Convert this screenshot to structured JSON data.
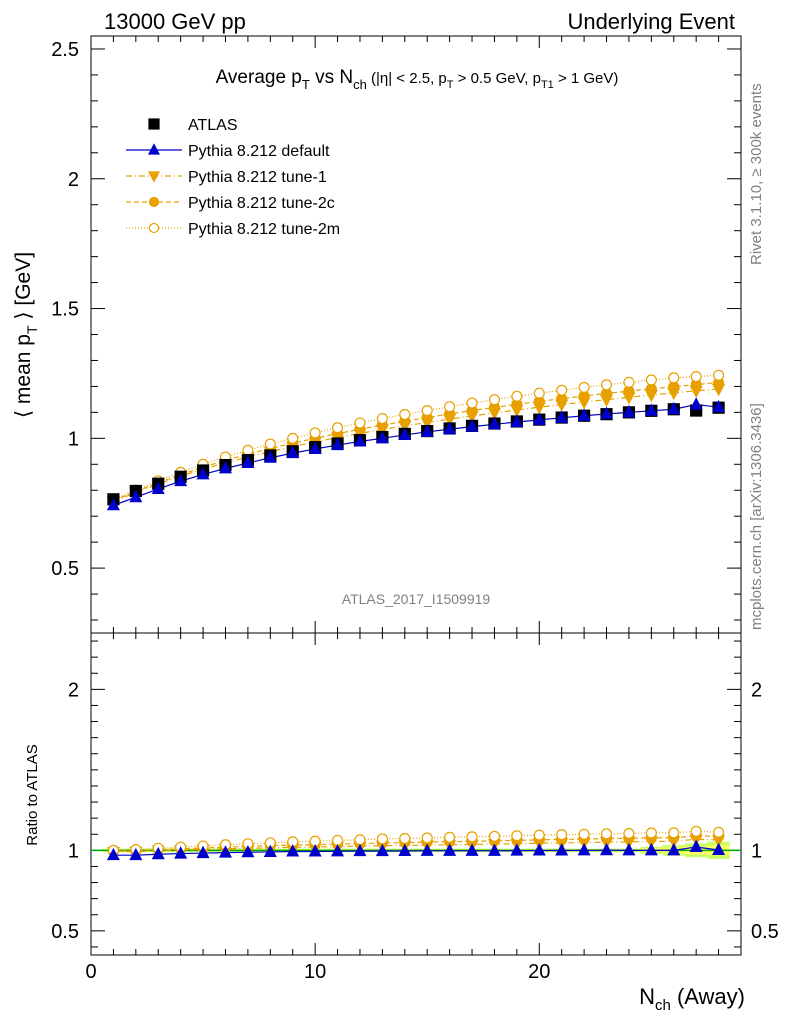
{
  "header": {
    "left": "13000 GeV pp",
    "right": "Underlying Event"
  },
  "plot_title": {
    "main": "Average p",
    "main_sub": "T",
    "vs": " vs N",
    "vs_sub": "ch",
    "cuts_a": " (|η| < 2.5, p",
    "cuts_sub1": "T",
    "cuts_b": " > 0.5 GeV, p",
    "cuts_sub2": "T1",
    "cuts_c": " > 1 GeV)"
  },
  "side_labels": {
    "rivet": "Rivet 3.1.10, ≥ 300k events",
    "mcplots": "mcplots.cern.ch [arXiv:1306.3436]"
  },
  "analysis_id": "ATLAS_2017_I1509919",
  "y_label": {
    "open": "⟨ mean p",
    "sub": "T",
    "close": " ⟩ [GeV]"
  },
  "ratio_label": "Ratio to ATLAS",
  "x_label": {
    "main": "N",
    "sub": "ch",
    "suffix": " (Away)"
  },
  "colors": {
    "atlas": "#000000",
    "default": "#0000cc",
    "tunes": "#e8a000",
    "band_inner": "#ffff66",
    "band_outer": "#ccff66",
    "ref_line": "#00aa00"
  },
  "chart_data": [
    {
      "type": "scatter",
      "panel": "main",
      "x": [
        1,
        2,
        3,
        4,
        5,
        6,
        7,
        8,
        9,
        10,
        11,
        12,
        13,
        14,
        15,
        16,
        17,
        18,
        19,
        20,
        21,
        22,
        23,
        24,
        25,
        26,
        27,
        28
      ],
      "xlim": [
        0,
        29
      ],
      "ylim": [
        0.25,
        2.55
      ],
      "y_ticks": [
        "0.5",
        "1",
        "1.5",
        "2",
        "2.5"
      ],
      "x_ticks": [
        "0",
        "10",
        "20"
      ],
      "legend_position": "top-left",
      "series": [
        {
          "name": "ATLAS",
          "marker": "filled-square",
          "values": [
            0.765,
            0.797,
            0.825,
            0.852,
            0.876,
            0.897,
            0.916,
            0.934,
            0.95,
            0.966,
            0.98,
            0.993,
            1.005,
            1.017,
            1.028,
            1.038,
            1.048,
            1.057,
            1.065,
            1.072,
            1.08,
            1.087,
            1.093,
            1.1,
            1.106,
            1.112,
            1.107,
            1.118
          ]
        },
        {
          "name": "Pythia 8.212 default",
          "marker": "filled-triangle-up",
          "line": "solid",
          "values": [
            0.742,
            0.773,
            0.805,
            0.835,
            0.861,
            0.884,
            0.905,
            0.925,
            0.943,
            0.959,
            0.974,
            0.988,
            1.0,
            1.013,
            1.025,
            1.035,
            1.045,
            1.054,
            1.063,
            1.071,
            1.079,
            1.087,
            1.094,
            1.1,
            1.106,
            1.112,
            1.13,
            1.12
          ]
        },
        {
          "name": "Pythia 8.212 tune-1",
          "marker": "filled-triangle-down",
          "line": "dash-dot",
          "values": [
            0.757,
            0.791,
            0.824,
            0.854,
            0.881,
            0.906,
            0.928,
            0.949,
            0.968,
            0.986,
            1.003,
            1.019,
            1.034,
            1.048,
            1.061,
            1.074,
            1.086,
            1.098,
            1.109,
            1.12,
            1.13,
            1.14,
            1.149,
            1.158,
            1.167,
            1.175,
            1.183,
            1.19
          ]
        },
        {
          "name": "Pythia 8.212 tune-2c",
          "marker": "filled-circle",
          "line": "dashed",
          "values": [
            0.76,
            0.795,
            0.829,
            0.86,
            0.889,
            0.915,
            0.939,
            0.961,
            0.981,
            1.0,
            1.018,
            1.035,
            1.051,
            1.066,
            1.08,
            1.094,
            1.107,
            1.119,
            1.131,
            1.142,
            1.153,
            1.163,
            1.173,
            1.182,
            1.191,
            1.199,
            1.207,
            1.215
          ]
        },
        {
          "name": "Pythia 8.212 tune-2m",
          "marker": "open-circle",
          "line": "dotted",
          "values": [
            0.765,
            0.801,
            0.836,
            0.869,
            0.9,
            0.928,
            0.954,
            0.978,
            1.0,
            1.021,
            1.041,
            1.059,
            1.076,
            1.092,
            1.107,
            1.122,
            1.136,
            1.149,
            1.162,
            1.174,
            1.185,
            1.196,
            1.206,
            1.216,
            1.225,
            1.233,
            1.238,
            1.243
          ]
        }
      ]
    },
    {
      "type": "scatter",
      "panel": "ratio",
      "x": [
        1,
        2,
        3,
        4,
        5,
        6,
        7,
        8,
        9,
        10,
        11,
        12,
        13,
        14,
        15,
        16,
        17,
        18,
        19,
        20,
        21,
        22,
        23,
        24,
        25,
        26,
        27,
        28
      ],
      "xlim": [
        0,
        29
      ],
      "ylim": [
        0.35,
        2.35
      ],
      "y_ticks": [
        "0.5",
        "1",
        "2"
      ],
      "reference": 1,
      "series": [
        {
          "name": "Pythia 8.212 default",
          "values": [
            0.97,
            0.97,
            0.976,
            0.98,
            0.983,
            0.986,
            0.988,
            0.99,
            0.993,
            0.993,
            0.994,
            0.995,
            0.995,
            0.996,
            0.997,
            0.997,
            0.997,
            0.997,
            0.998,
            0.999,
            0.999,
            1.0,
            1.001,
            1.0,
            1.0,
            1.0,
            1.021,
            1.002
          ]
        },
        {
          "name": "Pythia 8.212 tune-1",
          "values": [
            0.99,
            0.992,
            0.999,
            1.002,
            1.006,
            1.01,
            1.013,
            1.016,
            1.019,
            1.021,
            1.023,
            1.026,
            1.029,
            1.031,
            1.032,
            1.035,
            1.036,
            1.039,
            1.041,
            1.045,
            1.046,
            1.049,
            1.051,
            1.053,
            1.055,
            1.057,
            1.069,
            1.064
          ]
        },
        {
          "name": "Pythia 8.212 tune-2c",
          "values": [
            0.994,
            0.997,
            1.005,
            1.009,
            1.015,
            1.02,
            1.025,
            1.029,
            1.033,
            1.035,
            1.039,
            1.042,
            1.046,
            1.048,
            1.051,
            1.054,
            1.056,
            1.059,
            1.062,
            1.065,
            1.068,
            1.07,
            1.073,
            1.075,
            1.077,
            1.078,
            1.09,
            1.087
          ]
        },
        {
          "name": "Pythia 8.212 tune-2m",
          "values": [
            1.0,
            1.005,
            1.013,
            1.02,
            1.027,
            1.035,
            1.041,
            1.047,
            1.053,
            1.057,
            1.062,
            1.066,
            1.071,
            1.074,
            1.077,
            1.081,
            1.084,
            1.087,
            1.091,
            1.095,
            1.097,
            1.1,
            1.103,
            1.105,
            1.108,
            1.109,
            1.118,
            1.112
          ]
        }
      ]
    }
  ]
}
